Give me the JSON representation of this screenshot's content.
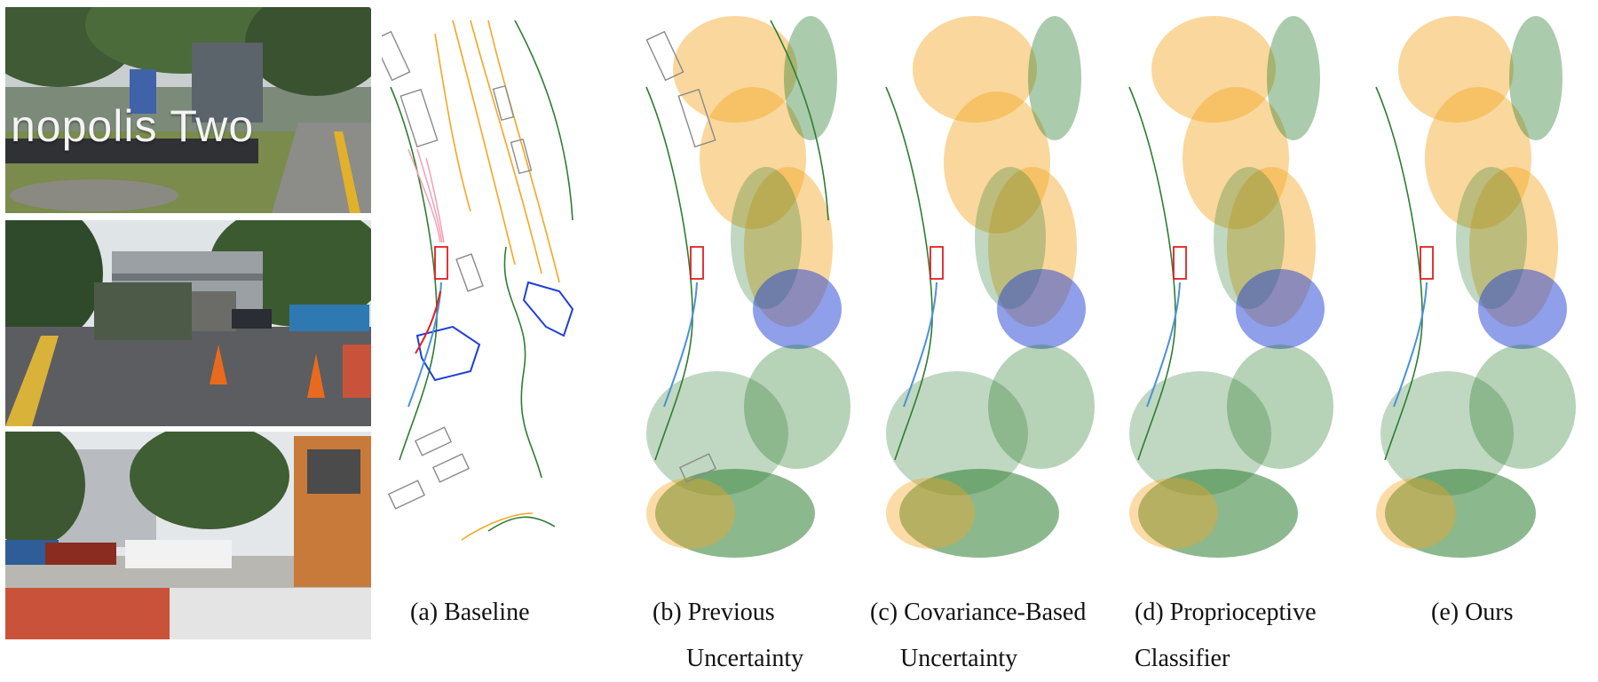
{
  "camera_views": {
    "front_sign_text": "nopolis Two",
    "sign_logo_icon": "sign-panel-icon"
  },
  "panels": [
    {
      "id": "a",
      "line1": "(a) Baseline",
      "line2": ""
    },
    {
      "id": "b",
      "line1": "(b) Previous",
      "line2": "Uncertainty"
    },
    {
      "id": "c",
      "line1": "(c) Covariance-Based",
      "line2": "Uncertainty"
    },
    {
      "id": "d",
      "line1": "(d) Proprioceptive",
      "line2": "Classifier"
    },
    {
      "id": "e",
      "line1": "(e) Ours",
      "line2": ""
    }
  ],
  "colors": {
    "road_boundary": "#2e7d32",
    "lane_divider": "#f5a623",
    "pedestrian_crossing": "#1f3fd6",
    "ego_vehicle": "#e02020",
    "ego_plan": "#4a90d9",
    "predictions": "#f2a0b5",
    "agent_box": "#8a8a8a"
  }
}
